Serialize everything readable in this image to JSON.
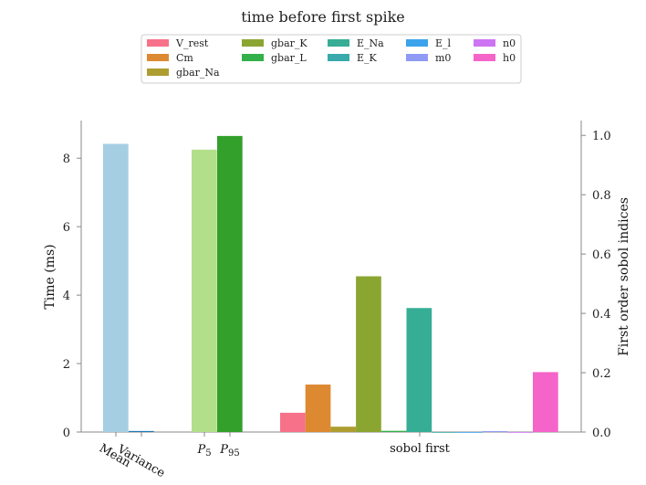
{
  "chart_data": {
    "type": "bar",
    "title": "time before first spike",
    "left_axis": {
      "label": "Time (ms)",
      "ylim": [
        0,
        9.1
      ],
      "ticks": [
        0,
        2,
        4,
        6,
        8
      ]
    },
    "right_axis": {
      "label": "First order sobol indices",
      "ylim": [
        0,
        1.05
      ],
      "ticks": [
        "0.0",
        "0.2",
        "0.4",
        "0.6",
        "0.8",
        "1.0"
      ]
    },
    "categories": [
      {
        "label": "Mean",
        "tspan": false
      },
      {
        "label": "Variance",
        "tspan": false
      },
      {
        "label": "P",
        "sub": "5"
      },
      {
        "label": "P",
        "sub": "95"
      },
      {
        "label": "sobol first",
        "tspan": false
      }
    ],
    "time_bars": [
      {
        "name": "Mean",
        "value": 8.42,
        "color": "#a6cee3"
      },
      {
        "name": "Variance",
        "value": 0.03,
        "color": "#1f78b4"
      },
      {
        "name": "P_5",
        "value": 8.25,
        "color": "#b2df8a"
      },
      {
        "name": "P_95",
        "value": 8.65,
        "color": "#33a02c"
      }
    ],
    "sobol_bars": [
      {
        "name": "V_rest",
        "value": 0.065,
        "color": "#f77189"
      },
      {
        "name": "Cm",
        "value": 0.16,
        "color": "#dc8932"
      },
      {
        "name": "gbar_Na",
        "value": 0.018,
        "color": "#ae9d31"
      },
      {
        "name": "gbar_K",
        "value": 0.525,
        "color": "#8aa631"
      },
      {
        "name": "gbar_L",
        "value": 0.004,
        "color": "#33b04a"
      },
      {
        "name": "E_Na",
        "value": 0.418,
        "color": "#36ad95"
      },
      {
        "name": "E_K",
        "value": 0.0,
        "color": "#38aaac"
      },
      {
        "name": "E_l",
        "value": 0.0,
        "color": "#3ba3ec"
      },
      {
        "name": "m0",
        "value": 0.003,
        "color": "#8e9af5"
      },
      {
        "name": "n0",
        "value": 0.0,
        "color": "#cd74f2"
      },
      {
        "name": "h0",
        "value": 0.202,
        "color": "#f564c8"
      }
    ],
    "legend": {
      "placement": "top-center",
      "entries": [
        "V_rest",
        "Cm",
        "gbar_Na",
        "gbar_K",
        "gbar_L",
        "E_Na",
        "E_K",
        "E_l",
        "m0",
        "n0",
        "h0"
      ]
    }
  }
}
